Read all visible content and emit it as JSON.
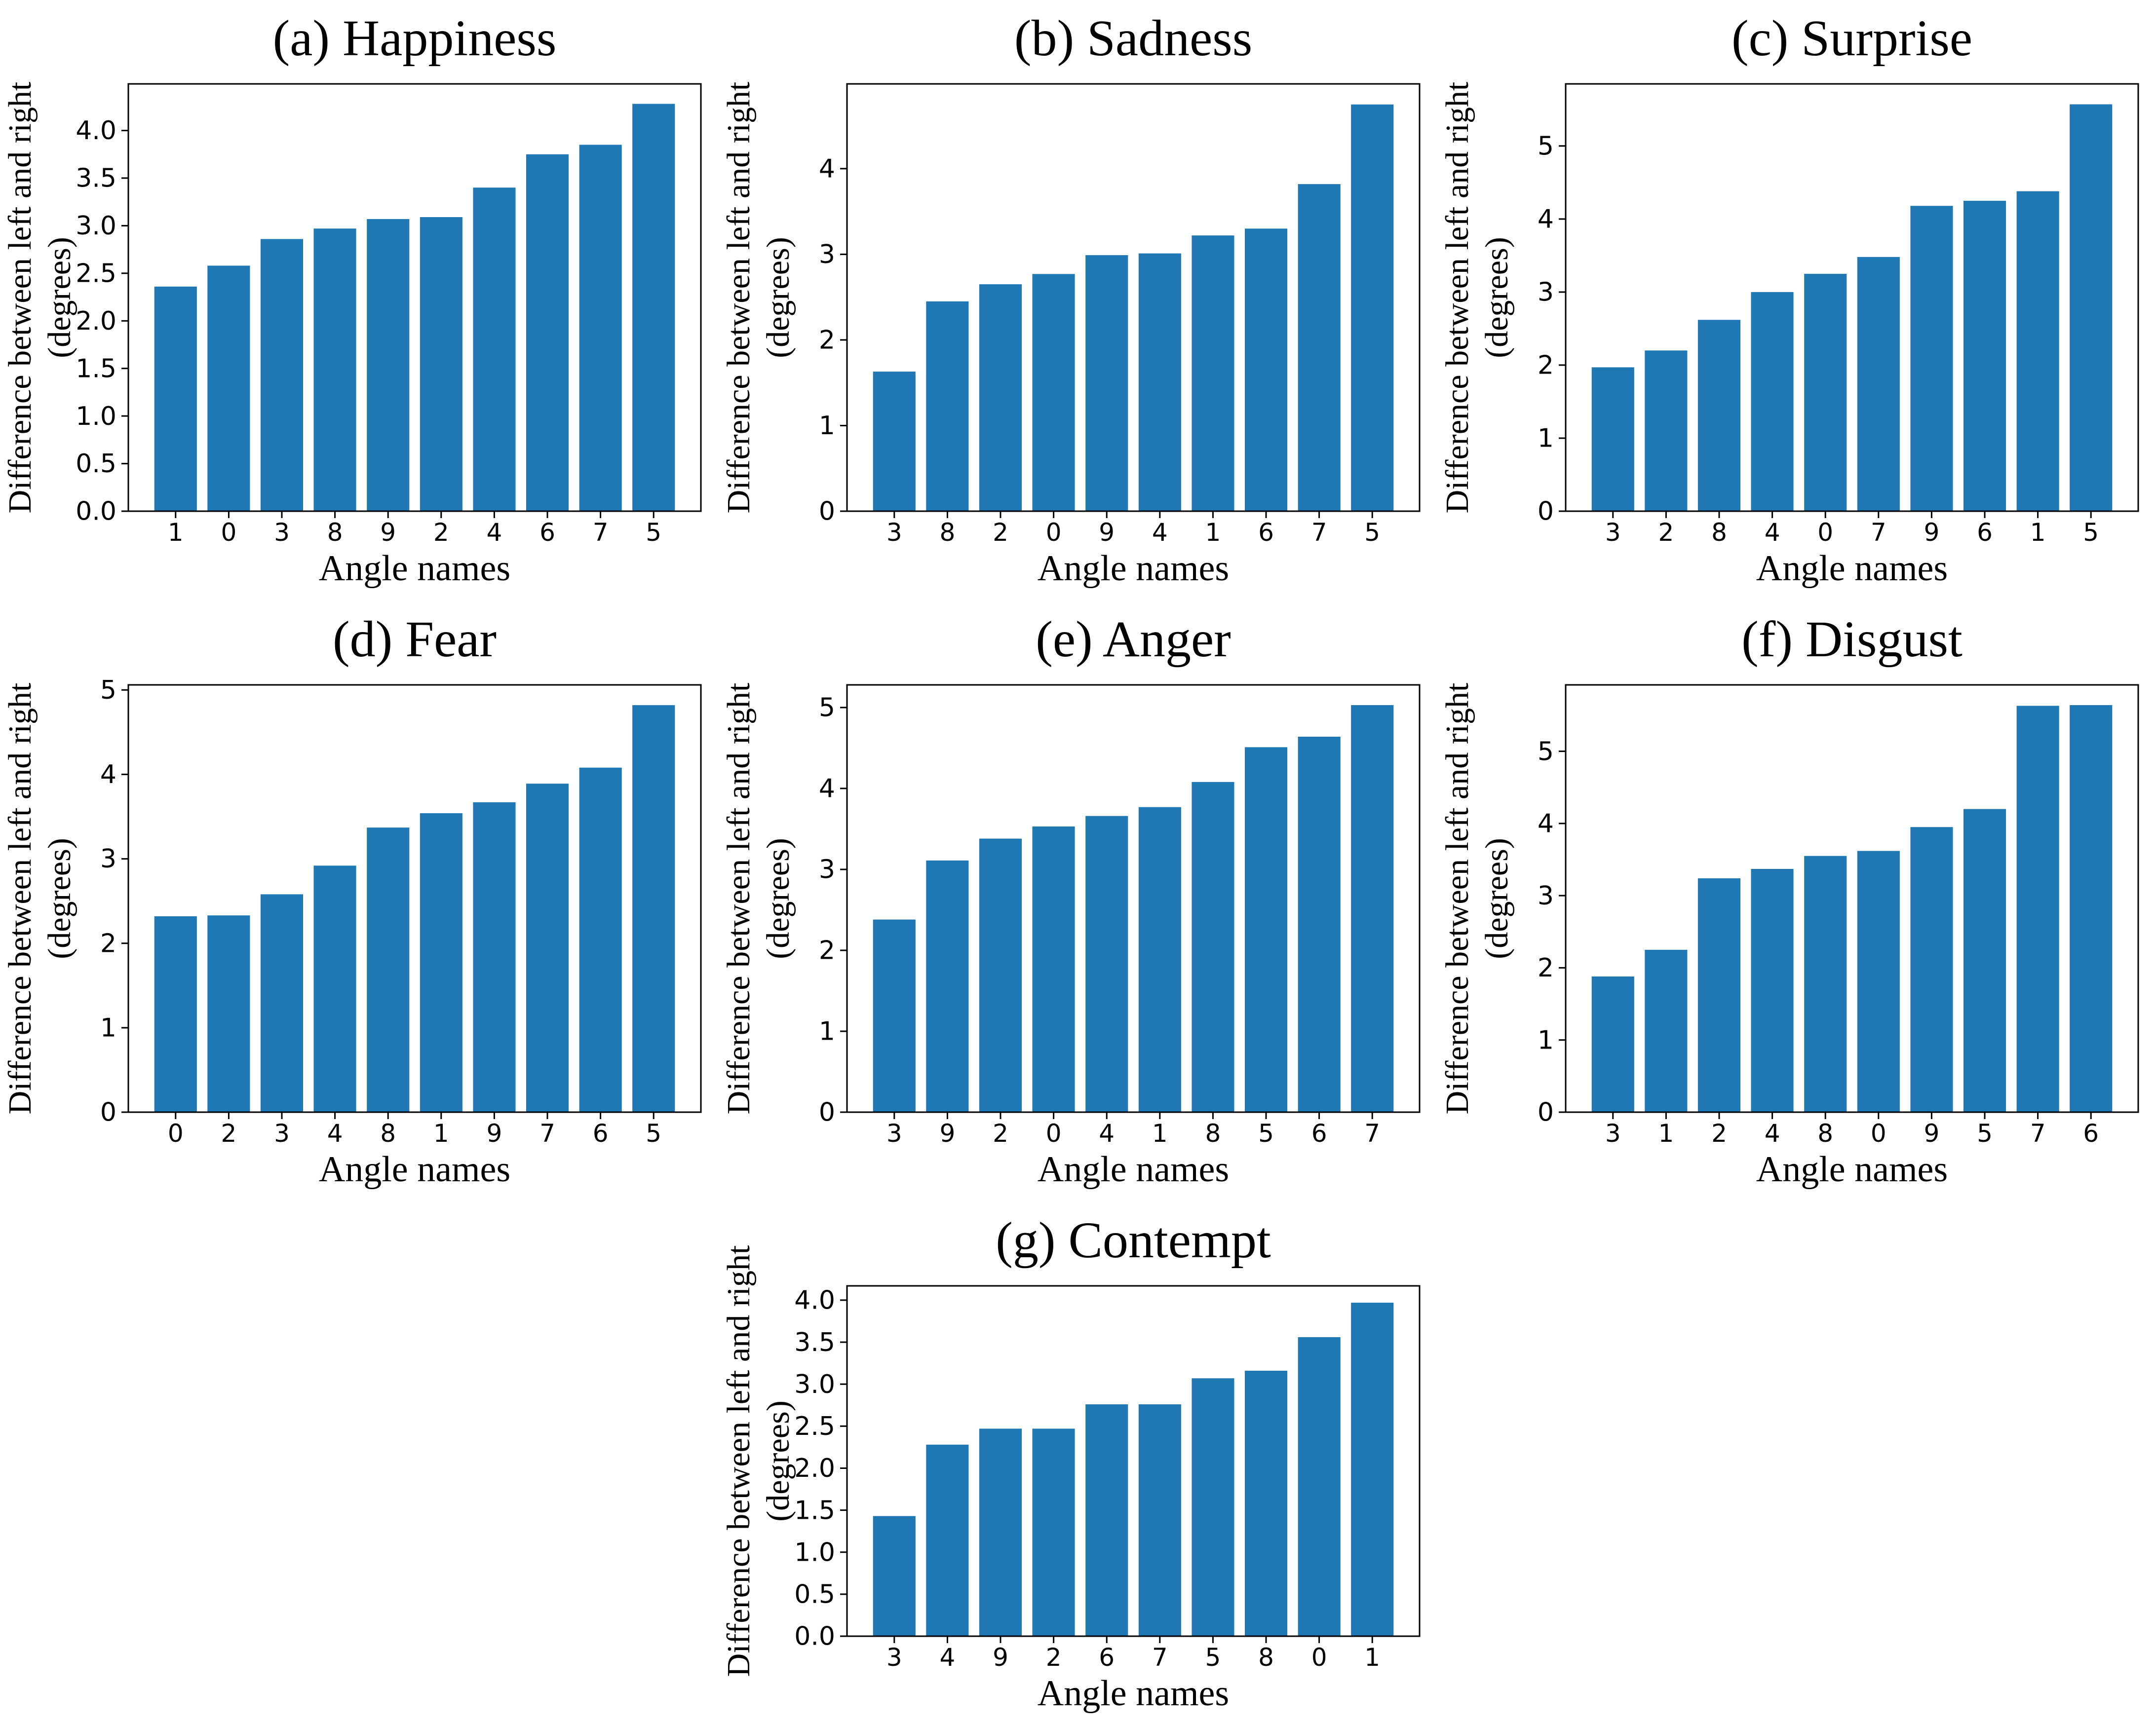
{
  "figure": {
    "background_color": "#ffffff",
    "bar_color": "#1f77b4",
    "axis_color": "#000000",
    "tick_label_color": "#000000"
  },
  "chart_data": [
    {
      "type": "bar",
      "panel": "a",
      "title": "(a) Happiness",
      "xlabel": "Angle names",
      "ylabel_line1": "Difference between left and right",
      "ylabel_line2": "(degrees)",
      "categories": [
        "1",
        "0",
        "3",
        "8",
        "9",
        "2",
        "4",
        "6",
        "7",
        "5"
      ],
      "values": [
        2.36,
        2.58,
        2.86,
        2.97,
        3.07,
        3.09,
        3.4,
        3.75,
        3.85,
        4.28
      ],
      "ytick_step": 0.5,
      "ytick_max": 4.0,
      "ytick_decimals": 1,
      "ylim": [
        0,
        4.49
      ],
      "grid": false,
      "legend": null
    },
    {
      "type": "bar",
      "panel": "b",
      "title": "(b) Sadness",
      "xlabel": "Angle names",
      "ylabel_line1": "Difference between left and right",
      "ylabel_line2": "(degrees)",
      "categories": [
        "3",
        "8",
        "2",
        "0",
        "9",
        "4",
        "1",
        "6",
        "7",
        "5"
      ],
      "values": [
        1.63,
        2.45,
        2.65,
        2.77,
        2.99,
        3.01,
        3.22,
        3.3,
        3.82,
        4.75
      ],
      "ytick_step": 1,
      "ytick_max": 4,
      "ytick_decimals": 0,
      "ylim": [
        0,
        4.99
      ],
      "grid": false,
      "legend": null
    },
    {
      "type": "bar",
      "panel": "c",
      "title": "(c) Surprise",
      "xlabel": "Angle names",
      "ylabel_line1": "Difference between left and right",
      "ylabel_line2": "(degrees)",
      "categories": [
        "3",
        "2",
        "8",
        "4",
        "0",
        "7",
        "9",
        "6",
        "1",
        "5"
      ],
      "values": [
        1.97,
        2.2,
        2.62,
        3.0,
        3.25,
        3.48,
        4.18,
        4.25,
        4.38,
        5.57
      ],
      "ytick_step": 1,
      "ytick_max": 5,
      "ytick_decimals": 0,
      "ylim": [
        0,
        5.85
      ],
      "grid": false,
      "legend": null
    },
    {
      "type": "bar",
      "panel": "d",
      "title": "(d) Fear",
      "xlabel": "Angle names",
      "ylabel_line1": "Difference between left and right",
      "ylabel_line2": "(degrees)",
      "categories": [
        "0",
        "2",
        "3",
        "4",
        "8",
        "1",
        "9",
        "7",
        "6",
        "5"
      ],
      "values": [
        2.32,
        2.33,
        2.58,
        2.92,
        3.37,
        3.54,
        3.67,
        3.89,
        4.08,
        4.82
      ],
      "ytick_step": 1,
      "ytick_max": 5,
      "ytick_decimals": 0,
      "ylim": [
        0,
        5.06
      ],
      "grid": false,
      "legend": null
    },
    {
      "type": "bar",
      "panel": "e",
      "title": "(e) Anger",
      "xlabel": "Angle names",
      "ylabel_line1": "Difference between left and right",
      "ylabel_line2": "(degrees)",
      "categories": [
        "3",
        "9",
        "2",
        "0",
        "4",
        "1",
        "8",
        "5",
        "6",
        "7"
      ],
      "values": [
        2.38,
        3.11,
        3.38,
        3.53,
        3.66,
        3.77,
        4.08,
        4.51,
        4.64,
        5.03
      ],
      "ytick_step": 1,
      "ytick_max": 5,
      "ytick_decimals": 0,
      "ylim": [
        0,
        5.28
      ],
      "grid": false,
      "legend": null
    },
    {
      "type": "bar",
      "panel": "f",
      "title": "(f) Disgust",
      "xlabel": "Angle names",
      "ylabel_line1": "Difference between left and right",
      "ylabel_line2": "(degrees)",
      "categories": [
        "3",
        "1",
        "2",
        "4",
        "8",
        "0",
        "9",
        "5",
        "7",
        "6"
      ],
      "values": [
        1.88,
        2.25,
        3.24,
        3.37,
        3.55,
        3.62,
        3.95,
        4.2,
        5.63,
        5.64
      ],
      "ytick_step": 1,
      "ytick_max": 5,
      "ytick_decimals": 0,
      "ylim": [
        0,
        5.92
      ],
      "grid": false,
      "legend": null
    },
    {
      "type": "bar",
      "panel": "g",
      "title": "(g) Contempt",
      "xlabel": "Angle names",
      "ylabel_line1": "Difference between left and right",
      "ylabel_line2": "(degrees)",
      "categories": [
        "3",
        "4",
        "9",
        "2",
        "6",
        "7",
        "5",
        "8",
        "0",
        "1"
      ],
      "values": [
        1.43,
        2.28,
        2.47,
        2.47,
        2.76,
        2.76,
        3.07,
        3.16,
        3.56,
        3.97
      ],
      "ytick_step": 0.5,
      "ytick_max": 4.0,
      "ytick_decimals": 1,
      "ylim": [
        0,
        4.17
      ],
      "grid": false,
      "legend": null
    }
  ]
}
